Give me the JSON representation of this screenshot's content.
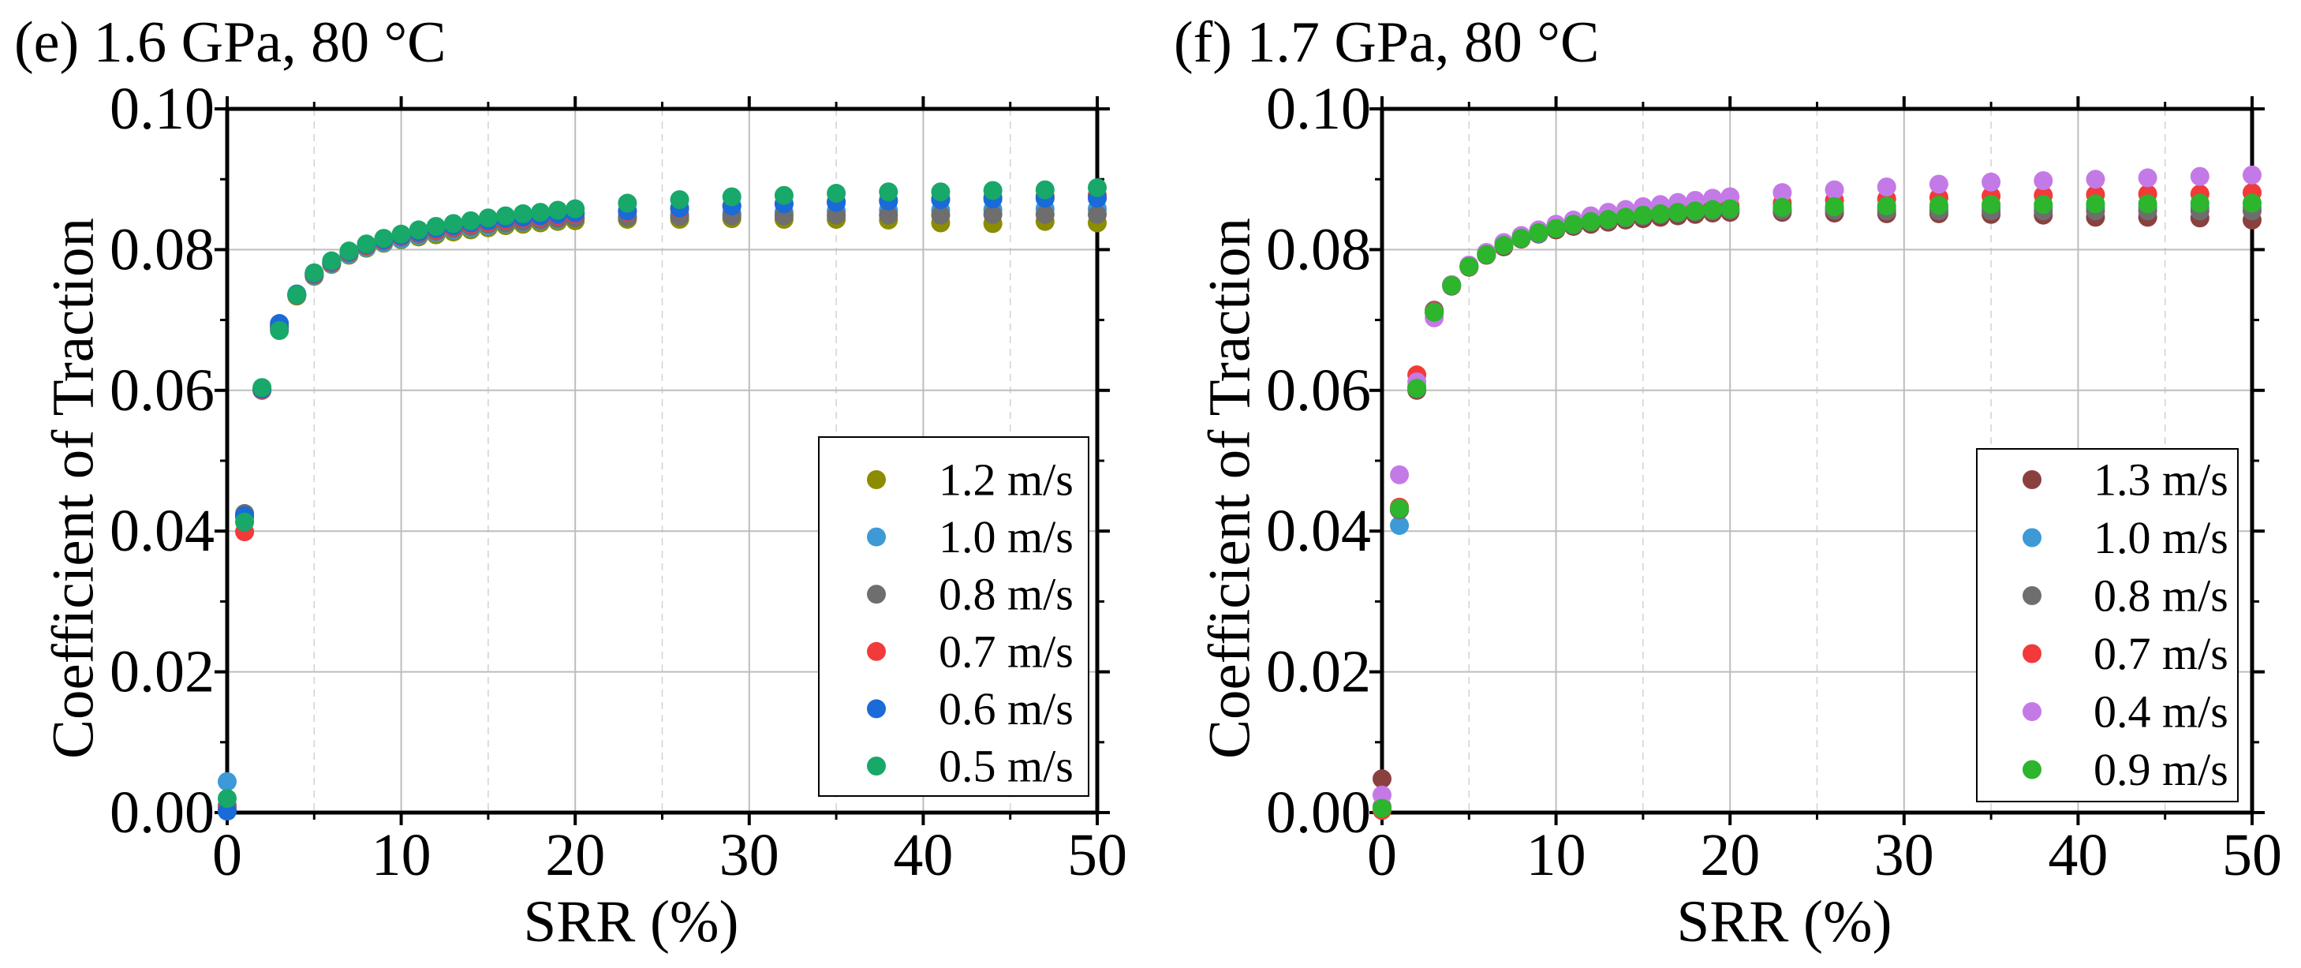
{
  "chart_data": [
    {
      "type": "scatter",
      "title": "(e) 1.6 GPa, 80 °C",
      "xlabel": "SRR (%)",
      "ylabel": "Coefficient of Traction",
      "xlim": [
        0,
        50
      ],
      "ylim": [
        0,
        0.1
      ],
      "xticks": [
        "0",
        "10",
        "20",
        "30",
        "40",
        "50"
      ],
      "yticks": [
        "0.00",
        "0.02",
        "0.04",
        "0.06",
        "0.08",
        "0.10"
      ],
      "grid": true,
      "x": [
        0,
        1,
        2,
        3,
        4,
        5,
        6,
        7,
        8,
        9,
        10,
        11,
        12,
        13,
        14,
        15,
        16,
        17,
        18,
        19,
        20,
        23,
        26,
        29,
        32,
        35,
        38,
        41,
        44,
        47,
        50
      ],
      "series": [
        {
          "name": "1.2 m/s",
          "color": "#8c8c00",
          "values": [
            0.0005,
            0.042,
            0.06,
            0.0688,
            0.0734,
            0.0762,
            0.0779,
            0.0792,
            0.0802,
            0.0809,
            0.0814,
            0.0818,
            0.0821,
            0.0825,
            0.0828,
            0.0831,
            0.0834,
            0.0836,
            0.0838,
            0.084,
            0.0841,
            0.0843,
            0.0843,
            0.0844,
            0.0843,
            0.0843,
            0.0842,
            0.0838,
            0.0837,
            0.084,
            0.0838
          ]
        },
        {
          "name": "1.0 m/s",
          "color": "#3d9ad6",
          "values": [
            0.0044,
            0.0421,
            0.0601,
            0.069,
            0.0735,
            0.0763,
            0.078,
            0.0793,
            0.0803,
            0.081,
            0.0815,
            0.082,
            0.0824,
            0.0828,
            0.0831,
            0.0834,
            0.0837,
            0.0839,
            0.0841,
            0.0843,
            0.0845,
            0.0847,
            0.085,
            0.0852,
            0.0853,
            0.0855,
            0.0856,
            0.0856,
            0.0857,
            0.0858,
            0.0858
          ]
        },
        {
          "name": "0.8 m/s",
          "color": "#6e6e6e",
          "values": [
            0.001,
            0.0425,
            0.06,
            0.069,
            0.0735,
            0.0764,
            0.0781,
            0.0795,
            0.0805,
            0.0812,
            0.0818,
            0.0822,
            0.0826,
            0.083,
            0.0833,
            0.0836,
            0.0838,
            0.084,
            0.0842,
            0.0844,
            0.0845,
            0.0846,
            0.0847,
            0.0848,
            0.0848,
            0.0849,
            0.0849,
            0.0849,
            0.085,
            0.085,
            0.085
          ]
        },
        {
          "name": "0.7 m/s",
          "color": "#f23a3a",
          "values": [
            0.0005,
            0.0399,
            0.0601,
            0.0691,
            0.0736,
            0.0765,
            0.0782,
            0.0796,
            0.0806,
            0.0813,
            0.0819,
            0.0824,
            0.0828,
            0.0832,
            0.0836,
            0.0839,
            0.0842,
            0.0844,
            0.0846,
            0.0848,
            0.085,
            0.0854,
            0.0858,
            0.0862,
            0.0865,
            0.0868,
            0.087,
            0.0872,
            0.0874,
            0.0876,
            0.0877
          ]
        },
        {
          "name": "0.6 m/s",
          "color": "#1a6ad8",
          "values": [
            0.0002,
            0.0422,
            0.0602,
            0.0695,
            0.0737,
            0.0766,
            0.0783,
            0.0797,
            0.0807,
            0.0814,
            0.082,
            0.0825,
            0.083,
            0.0834,
            0.0838,
            0.0841,
            0.0844,
            0.0846,
            0.0848,
            0.085,
            0.0852,
            0.0855,
            0.0859,
            0.0862,
            0.0865,
            0.0867,
            0.0869,
            0.0871,
            0.0872,
            0.0873,
            0.0873
          ]
        },
        {
          "name": "0.5 m/s",
          "color": "#17a86a",
          "values": [
            0.002,
            0.0413,
            0.0604,
            0.0685,
            0.0736,
            0.0767,
            0.0784,
            0.0798,
            0.0808,
            0.0816,
            0.0822,
            0.0828,
            0.0833,
            0.0837,
            0.0841,
            0.0845,
            0.0848,
            0.0851,
            0.0853,
            0.0856,
            0.0858,
            0.0866,
            0.0871,
            0.0875,
            0.0877,
            0.088,
            0.0882,
            0.0882,
            0.0884,
            0.0885,
            0.0888
          ]
        }
      ]
    },
    {
      "type": "scatter",
      "title": "(f) 1.7 GPa, 80 °C",
      "xlabel": "SRR (%)",
      "ylabel": "Coefficient of Traction",
      "xlim": [
        0,
        50
      ],
      "ylim": [
        0,
        0.1
      ],
      "xticks": [
        "0",
        "10",
        "20",
        "30",
        "40",
        "50"
      ],
      "yticks": [
        "0.00",
        "0.02",
        "0.04",
        "0.06",
        "0.08",
        "0.10"
      ],
      "grid": true,
      "x": [
        0,
        1,
        2,
        3,
        4,
        5,
        6,
        7,
        8,
        9,
        10,
        11,
        12,
        13,
        14,
        15,
        16,
        17,
        18,
        19,
        20,
        23,
        26,
        29,
        32,
        35,
        38,
        41,
        44,
        47,
        50
      ],
      "series": [
        {
          "name": "1.3 m/s",
          "color": "#8b4040",
          "values": [
            0.0048,
            0.043,
            0.06,
            0.071,
            0.0748,
            0.0775,
            0.0792,
            0.0804,
            0.0815,
            0.0822,
            0.0828,
            0.0833,
            0.0836,
            0.0839,
            0.0842,
            0.0844,
            0.0846,
            0.0848,
            0.085,
            0.0852,
            0.0853,
            0.0853,
            0.0852,
            0.0851,
            0.0851,
            0.085,
            0.0849,
            0.0846,
            0.0846,
            0.0845,
            0.0842
          ]
        },
        {
          "name": "1.0 m/s",
          "color": "#3d9ad6",
          "values": [
            0.0005,
            0.0408,
            0.0605,
            0.0712,
            0.0749,
            0.0776,
            0.0793,
            0.0806,
            0.0816,
            0.0823,
            0.083,
            0.0835,
            0.0839,
            0.0842,
            0.0845,
            0.0848,
            0.085,
            0.0852,
            0.0854,
            0.0856,
            0.0857,
            0.0858,
            0.0859,
            0.0859,
            0.086,
            0.086,
            0.086,
            0.086,
            0.086,
            0.086,
            0.086
          ]
        },
        {
          "name": "0.8 m/s",
          "color": "#6e6e6e",
          "values": [
            0.0008,
            0.043,
            0.0602,
            0.0714,
            0.075,
            0.0776,
            0.0793,
            0.0806,
            0.0816,
            0.0824,
            0.083,
            0.0835,
            0.0839,
            0.0842,
            0.0845,
            0.0848,
            0.085,
            0.0852,
            0.0854,
            0.0855,
            0.0856,
            0.0856,
            0.0856,
            0.0855,
            0.0855,
            0.0855,
            0.0855,
            0.0855,
            0.0855,
            0.0855,
            0.0855
          ]
        },
        {
          "name": "0.7 m/s",
          "color": "#f23a3a",
          "values": [
            0.0003,
            0.0434,
            0.0622,
            0.0712,
            0.075,
            0.0777,
            0.0794,
            0.0807,
            0.0817,
            0.0825,
            0.0832,
            0.0837,
            0.0841,
            0.0845,
            0.0848,
            0.0851,
            0.0854,
            0.0856,
            0.0858,
            0.086,
            0.0862,
            0.0866,
            0.087,
            0.0872,
            0.0874,
            0.0876,
            0.0877,
            0.0878,
            0.0879,
            0.0879,
            0.0881
          ]
        },
        {
          "name": "0.4 m/s",
          "color": "#c47ae6",
          "values": [
            0.0025,
            0.048,
            0.0612,
            0.0703,
            0.075,
            0.0778,
            0.0796,
            0.081,
            0.082,
            0.0828,
            0.0836,
            0.0842,
            0.0848,
            0.0853,
            0.0857,
            0.0861,
            0.0864,
            0.0867,
            0.087,
            0.0873,
            0.0875,
            0.0881,
            0.0885,
            0.0889,
            0.0893,
            0.0896,
            0.0898,
            0.09,
            0.0902,
            0.0904,
            0.0906
          ]
        },
        {
          "name": "0.9 m/s",
          "color": "#2db52d",
          "values": [
            0.0006,
            0.0432,
            0.0603,
            0.0711,
            0.0749,
            0.0776,
            0.0793,
            0.0806,
            0.0816,
            0.0824,
            0.083,
            0.0836,
            0.084,
            0.0843,
            0.0846,
            0.0849,
            0.0851,
            0.0853,
            0.0855,
            0.0857,
            0.0858,
            0.086,
            0.0861,
            0.0862,
            0.0863,
            0.0864,
            0.0864,
            0.0865,
            0.0865,
            0.0866,
            0.0866
          ]
        }
      ]
    }
  ]
}
